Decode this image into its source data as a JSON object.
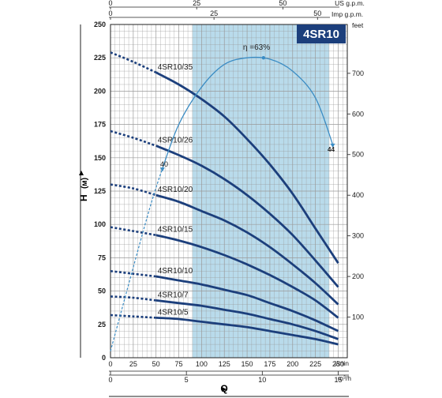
{
  "chart_data": {
    "type": "line",
    "title": "4SR10",
    "x_axis_primary": {
      "label": "Q",
      "unit": "l/min",
      "range": [
        0,
        260
      ],
      "ticks": [
        0,
        25,
        50,
        75,
        100,
        125,
        150,
        175,
        200,
        225,
        250
      ]
    },
    "x_axis_m3h": {
      "unit": "m³/h",
      "ticks": [
        0,
        5,
        10,
        15
      ]
    },
    "x_axis_us_gpm": {
      "unit": "US g.p.m.",
      "ticks": [
        0,
        25,
        50
      ]
    },
    "x_axis_imp_gpm": {
      "unit": "Imp g.p.m.",
      "ticks": [
        0,
        25,
        50
      ]
    },
    "y_axis_primary": {
      "label": "H",
      "unit": "(м)",
      "range": [
        0,
        250
      ],
      "ticks": [
        0,
        25,
        50,
        75,
        100,
        125,
        150,
        175,
        200,
        225,
        250
      ]
    },
    "y_axis_feet": {
      "unit": "feet",
      "ticks": [
        100,
        200,
        300,
        400,
        500,
        600,
        700
      ]
    },
    "recommended_range_lmin": [
      90,
      240
    ],
    "series": [
      {
        "name": "4SR10/35",
        "dashed_until": 50,
        "end_q": 250,
        "points": [
          [
            0,
            229
          ],
          [
            25,
            222
          ],
          [
            50,
            214
          ],
          [
            75,
            205
          ],
          [
            100,
            194
          ],
          [
            125,
            181
          ],
          [
            150,
            164
          ],
          [
            175,
            145
          ],
          [
            200,
            123
          ],
          [
            225,
            97
          ],
          [
            250,
            71
          ]
        ]
      },
      {
        "name": "4SR10/26",
        "dashed_until": 50,
        "end_q": 250,
        "points": [
          [
            0,
            170
          ],
          [
            25,
            165
          ],
          [
            50,
            159
          ],
          [
            75,
            152
          ],
          [
            100,
            144
          ],
          [
            125,
            134
          ],
          [
            150,
            122
          ],
          [
            175,
            108
          ],
          [
            200,
            92
          ],
          [
            225,
            73
          ],
          [
            250,
            53
          ]
        ]
      },
      {
        "name": "4SR10/20",
        "dashed_until": 50,
        "end_q": 250,
        "points": [
          [
            0,
            130
          ],
          [
            25,
            127
          ],
          [
            50,
            122
          ],
          [
            75,
            117
          ],
          [
            100,
            110
          ],
          [
            125,
            103
          ],
          [
            150,
            94
          ],
          [
            175,
            83
          ],
          [
            200,
            70
          ],
          [
            225,
            56
          ],
          [
            250,
            40
          ]
        ]
      },
      {
        "name": "4SR10/15",
        "dashed_until": 50,
        "end_q": 250,
        "points": [
          [
            0,
            98
          ],
          [
            25,
            95
          ],
          [
            50,
            92
          ],
          [
            75,
            88
          ],
          [
            100,
            83
          ],
          [
            125,
            77
          ],
          [
            150,
            70
          ],
          [
            175,
            62
          ],
          [
            200,
            53
          ],
          [
            225,
            43
          ],
          [
            250,
            30
          ]
        ]
      },
      {
        "name": "4SR10/10",
        "dashed_until": 50,
        "end_q": 250,
        "points": [
          [
            0,
            65
          ],
          [
            25,
            63
          ],
          [
            50,
            61
          ],
          [
            75,
            58
          ],
          [
            100,
            55
          ],
          [
            125,
            51
          ],
          [
            150,
            47
          ],
          [
            175,
            41
          ],
          [
            200,
            35
          ],
          [
            225,
            28
          ],
          [
            250,
            20
          ]
        ]
      },
      {
        "name": "4SR10/7",
        "dashed_until": 50,
        "end_q": 250,
        "points": [
          [
            0,
            46
          ],
          [
            25,
            45
          ],
          [
            50,
            43
          ],
          [
            75,
            41
          ],
          [
            100,
            39
          ],
          [
            125,
            36
          ],
          [
            150,
            33
          ],
          [
            175,
            29
          ],
          [
            200,
            25
          ],
          [
            225,
            20
          ],
          [
            250,
            14
          ]
        ]
      },
      {
        "name": "4SR10/5",
        "dashed_until": 50,
        "end_q": 250,
        "points": [
          [
            0,
            32
          ],
          [
            25,
            31
          ],
          [
            50,
            30
          ],
          [
            75,
            29
          ],
          [
            100,
            27
          ],
          [
            125,
            25
          ],
          [
            150,
            23
          ],
          [
            175,
            20
          ],
          [
            200,
            17
          ],
          [
            225,
            14
          ],
          [
            250,
            10
          ]
        ]
      }
    ],
    "efficiency_curve": {
      "peak_label": "η =63%",
      "start_label": "40",
      "end_label": "44",
      "points": [
        [
          0,
          5
        ],
        [
          40,
          105
        ],
        [
          57,
          142
        ],
        [
          75,
          175
        ],
        [
          100,
          203
        ],
        [
          125,
          220
        ],
        [
          150,
          225
        ],
        [
          175,
          224
        ],
        [
          200,
          215
        ],
        [
          225,
          195
        ],
        [
          244,
          160
        ]
      ],
      "peak_q": 168
    },
    "colors": {
      "series": "#1c3f7c",
      "efficiency": "#3a8cc4",
      "band": "#b9dbeb",
      "grid": "#9a9a9a",
      "title_bg": "#1c3f7c"
    }
  }
}
